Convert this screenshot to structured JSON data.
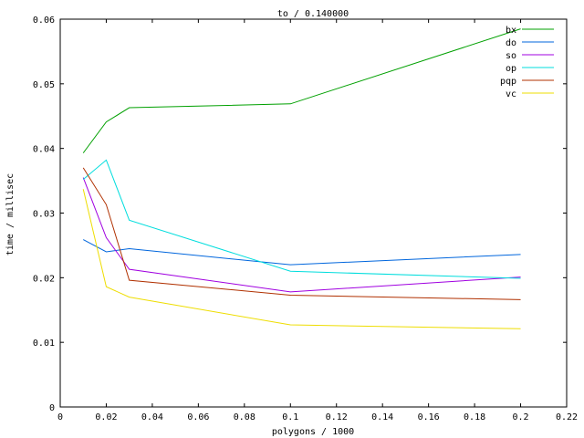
{
  "chart_data": {
    "type": "line",
    "title": "to / 0.140000",
    "xlabel": "polygons / 1000",
    "ylabel": "time / millisec",
    "xlim": [
      0,
      0.22
    ],
    "ylim": [
      0,
      0.06
    ],
    "xticks": [
      0,
      0.02,
      0.04,
      0.06,
      0.08,
      0.1,
      0.12,
      0.14,
      0.16,
      0.18,
      0.2,
      0.22
    ],
    "xtick_labels": [
      "0",
      "0.02",
      "0.04",
      "0.06",
      "0.08",
      "0.1",
      "0.12",
      "0.14",
      "0.16",
      "0.18",
      "0.2",
      "0.22"
    ],
    "yticks": [
      0,
      0.01,
      0.02,
      0.03,
      0.04,
      0.05,
      0.06
    ],
    "ytick_labels": [
      "0",
      "0.01",
      "0.02",
      "0.03",
      "0.04",
      "0.05",
      "0.06"
    ],
    "grid": false,
    "legend_position": "top-right",
    "x": [
      0.01,
      0.02,
      0.03,
      0.1,
      0.2
    ],
    "series": [
      {
        "name": "bx",
        "color": "#00a000",
        "values": [
          0.0393,
          0.0441,
          0.0463,
          0.0469,
          0.0585
        ]
      },
      {
        "name": "do",
        "color": "#0066dd",
        "values": [
          0.0259,
          0.024,
          0.0245,
          0.022,
          0.0236
        ]
      },
      {
        "name": "so",
        "color": "#a000e0",
        "values": [
          0.0355,
          0.0262,
          0.0213,
          0.0178,
          0.0201
        ]
      },
      {
        "name": "op",
        "color": "#00dddd",
        "values": [
          0.0352,
          0.0382,
          0.0289,
          0.021,
          0.0199
        ]
      },
      {
        "name": "pqp",
        "color": "#b03000",
        "values": [
          0.037,
          0.0313,
          0.0196,
          0.0173,
          0.0166
        ]
      },
      {
        "name": "vc",
        "color": "#eedd00",
        "values": [
          0.0337,
          0.0186,
          0.017,
          0.0127,
          0.0121
        ]
      }
    ]
  }
}
